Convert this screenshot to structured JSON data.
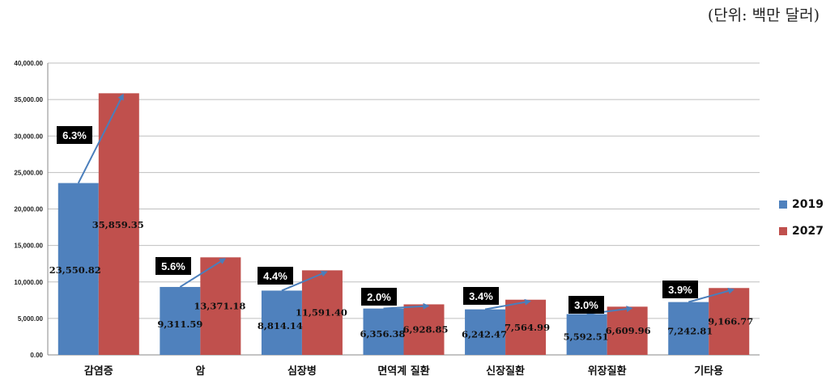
{
  "unit_label": "(단위: 백만 달러)",
  "colors": {
    "series_2019": "#4F81BD",
    "series_2027": "#C0504D",
    "growth_box": "#000000",
    "arrow": "#4A7EBB",
    "grid": "#BFBFBF"
  },
  "chart_data": {
    "type": "bar",
    "title": "",
    "xlabel": "",
    "ylabel": "",
    "ylim": [
      0,
      40000
    ],
    "yticks": [
      "0.00",
      "5,000.00",
      "10,000.00",
      "15,000.00",
      "20,000.00",
      "25,000.00",
      "30,000.00",
      "35,000.00",
      "40,000.00"
    ],
    "grid": true,
    "legend_position": "right",
    "categories": [
      "감염증",
      "암",
      "심장병",
      "면역계 질환",
      "신장질환",
      "위장질환",
      "기타용"
    ],
    "series": [
      {
        "name": "2019",
        "values": [
          23550.82,
          9311.59,
          8814.14,
          6356.38,
          6242.47,
          5592.51,
          7242.81
        ],
        "labels": [
          "23,550.82",
          "9,311.59",
          "8,814.14",
          "6,356.38",
          "6,242.47",
          "5,592.51",
          "7,242.81"
        ]
      },
      {
        "name": "2027",
        "values": [
          35859.35,
          13371.18,
          11591.4,
          6928.85,
          7564.99,
          6609.96,
          9166.77
        ],
        "labels": [
          "35,859.35",
          "13,371.18",
          "11,591.40",
          "6,928.85",
          "7,564.99",
          "6,609.96",
          "9,166.77"
        ]
      }
    ],
    "growth_rates": [
      "6.3%",
      "5.6%",
      "4.4%",
      "2.0%",
      "3.4%",
      "3.0%",
      "3.9%"
    ]
  }
}
